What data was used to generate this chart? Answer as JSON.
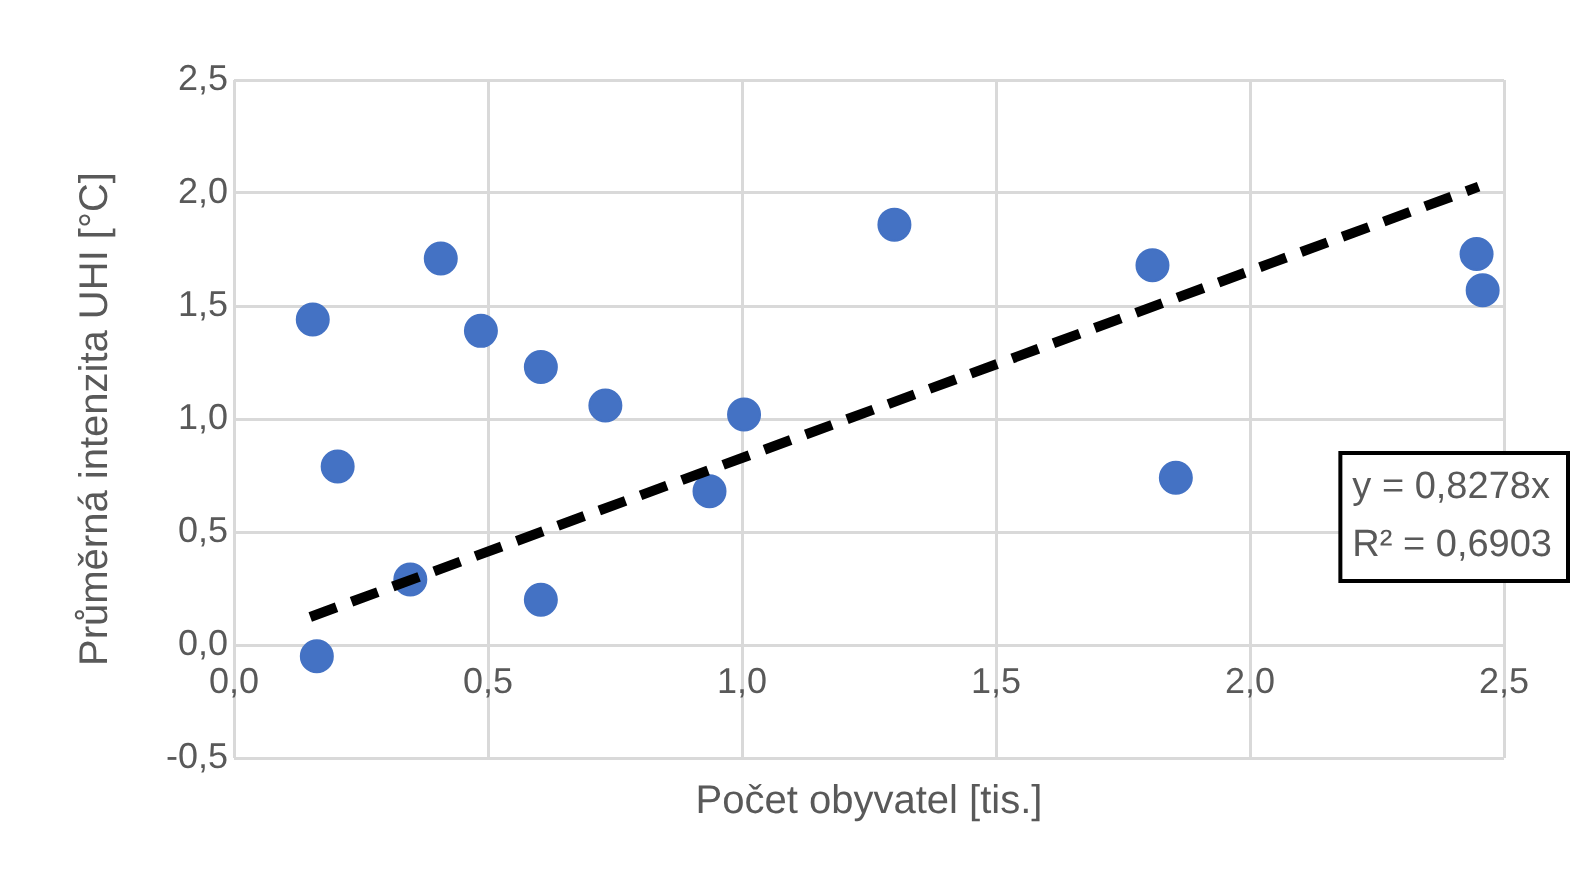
{
  "chart_data": {
    "type": "scatter",
    "xlabel": "Počet obyvatel [tis.]",
    "ylabel": "Průměrná intenzita UHI [°C]",
    "xlim": [
      0,
      2.5
    ],
    "xticks": [
      {
        "value": 0,
        "label": "0,0"
      },
      {
        "value": 0.5,
        "label": "0,5"
      },
      {
        "value": 1,
        "label": "1,0"
      },
      {
        "value": 1.5,
        "label": "1,5"
      },
      {
        "value": 2,
        "label": "2,0"
      },
      {
        "value": 2.5,
        "label": "2,5"
      }
    ],
    "ylim": [
      -0.5,
      2.5
    ],
    "yticks": [
      {
        "value": -0.5,
        "label": "-0,5"
      },
      {
        "value": 0,
        "label": "0,0"
      },
      {
        "value": 0.5,
        "label": "0,5"
      },
      {
        "value": 1,
        "label": "1,0"
      },
      {
        "value": 1.5,
        "label": "1,5"
      },
      {
        "value": 2,
        "label": "2,0"
      },
      {
        "value": 2.5,
        "label": "2,5"
      }
    ],
    "grid": true,
    "legend": false,
    "marker": "circle",
    "annotations": [
      "y = 0,8278x",
      "R² = 0,6903"
    ],
    "series": [
      {
        "color": "#4472c4",
        "x": [
          0.155,
          0.407,
          0.204,
          0.486,
          0.604,
          0.731,
          1.004,
          0.936,
          0.347,
          0.604,
          0.163,
          1.3,
          1.808,
          1.854,
          2.446,
          2.458
        ],
        "values": [
          1.44,
          1.71,
          0.79,
          1.39,
          1.23,
          1.06,
          1.02,
          0.68,
          0.29,
          0.2,
          -0.05,
          1.86,
          1.68,
          0.74,
          1.73,
          1.57
        ]
      },
      {
        "type": "line",
        "color": "#000000",
        "line_style": "dashed",
        "marker": "none",
        "x": [
          0.15,
          2.45
        ],
        "values": [
          0.124,
          2.028
        ]
      }
    ]
  }
}
